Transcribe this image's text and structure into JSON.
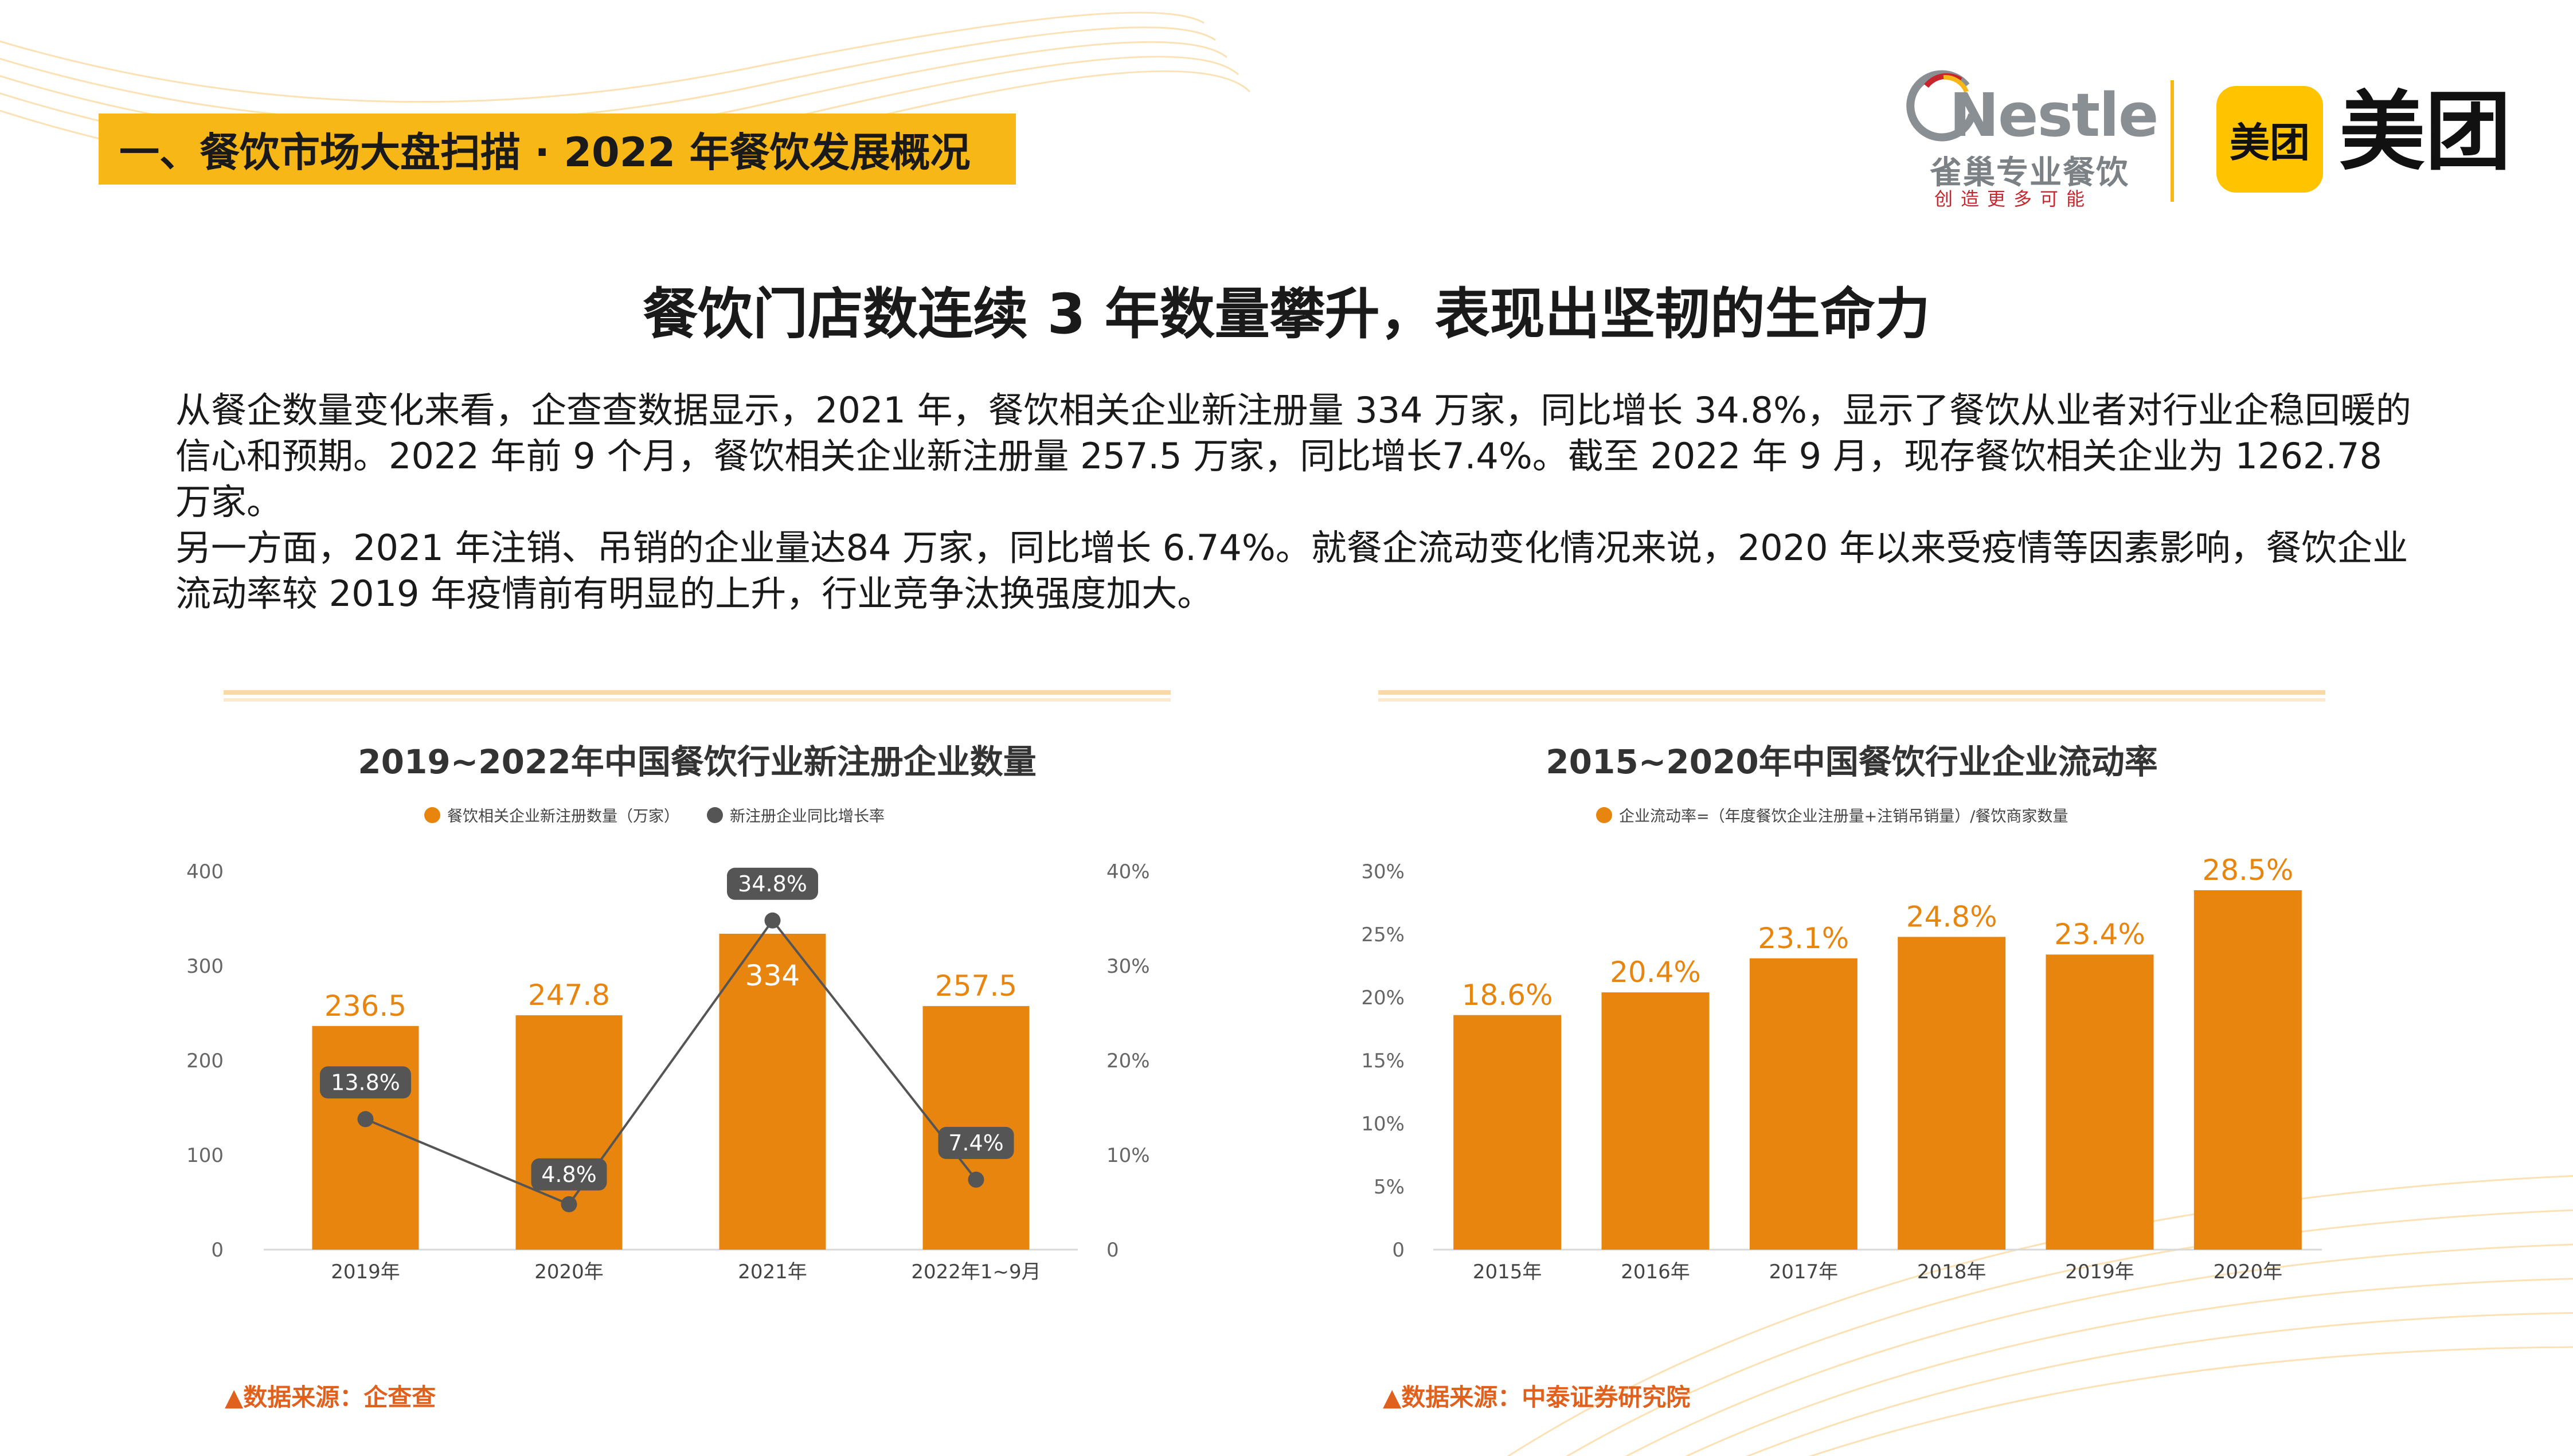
{
  "header": {
    "section_tag": "一、餐饮市场大盘扫描 · 2022 年餐饮发展概况",
    "logos": {
      "nestle_word": "Nestle",
      "nestle_cn": "雀巢专业餐饮",
      "nestle_slogan": "创造更多可能",
      "meituan_badge": "美团",
      "meituan_word": "美团"
    }
  },
  "main_title": "餐饮门店数连续 3 年数量攀升，表现出坚韧的生命力",
  "body": {
    "paragraph1": "从餐企数量变化来看，企查查数据显示，2021 年，餐饮相关企业新注册量 334 万家，同比增长 34.8%，显示了餐饮从业者对行业企稳回暖的信心和预期。2022 年前 9 个月，餐饮相关企业新注册量 257.5 万家，同比增长7.4%。截至 2022 年 9 月，现存餐饮相关企业为 1262.78 万家。",
    "paragraph2": "另一方面，2021 年注销、吊销的企业量达84 万家，同比增长 6.74%。就餐企流动变化情况来说，2020 年以来受疫情等因素影响，餐饮企业流动率较 2019 年疫情前有明显的上升，行业竞争汰换强度加大。"
  },
  "colors": {
    "accent_yellow": "#f6b717",
    "bar_orange": "#e8850e",
    "line_dark": "#555555",
    "source_orange": "#e0601d"
  },
  "chart_data": [
    {
      "type": "bar",
      "title": "2019~2022年中国餐饮行业新注册企业数量",
      "categories": [
        "2019年",
        "2020年",
        "2021年",
        "2022年1~9月"
      ],
      "series": [
        {
          "name": "餐饮相关企业新注册数量（万家）",
          "kind": "bar",
          "axis": "left",
          "values": [
            236.5,
            247.8,
            334,
            257.5
          ],
          "labels": [
            "236.5",
            "247.8",
            "334",
            "257.5"
          ]
        },
        {
          "name": "新注册企业同比增长率",
          "kind": "line",
          "axis": "right",
          "values": [
            13.8,
            4.8,
            34.8,
            7.4
          ],
          "labels": [
            "13.8%",
            "4.8%",
            "34.8%",
            "7.4%"
          ]
        }
      ],
      "ylim_left": [
        0,
        400
      ],
      "yticks_left": [
        "0",
        "100",
        "200",
        "300",
        "400"
      ],
      "ylim_right": [
        0,
        40
      ],
      "yticks_right": [
        "0",
        "10%",
        "20%",
        "30%",
        "40%"
      ],
      "source": "▲数据来源：企查查"
    },
    {
      "type": "bar",
      "title": "2015~2020年中国餐饮行业企业流动率",
      "categories": [
        "2015年",
        "2016年",
        "2017年",
        "2018年",
        "2019年",
        "2020年"
      ],
      "series": [
        {
          "name": "企业流动率=（年度餐饮企业注册量+注销吊销量）/餐饮商家数量",
          "kind": "bar",
          "values": [
            18.6,
            20.4,
            23.1,
            24.8,
            23.4,
            28.5
          ],
          "labels": [
            "18.6%",
            "20.4%",
            "23.1%",
            "24.8%",
            "23.4%",
            "28.5%"
          ]
        }
      ],
      "ylim": [
        0,
        30
      ],
      "yticks": [
        "0",
        "5%",
        "10%",
        "15%",
        "20%",
        "25%",
        "30%"
      ],
      "source": "▲数据来源：中泰证券研究院"
    }
  ]
}
